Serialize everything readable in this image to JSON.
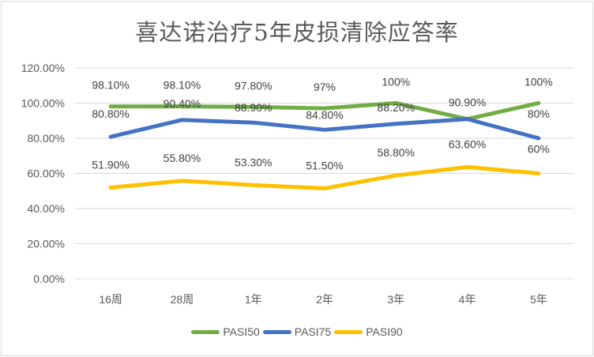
{
  "chart_data": {
    "type": "line",
    "title": "喜达诺治疗5年皮损清除应答率",
    "xlabel": "",
    "ylabel": "",
    "categories": [
      "16周",
      "28周",
      "1年",
      "2年",
      "3年",
      "4年",
      "5年"
    ],
    "y_ticks": [
      "0.00%",
      "20.00%",
      "40.00%",
      "60.00%",
      "80.00%",
      "100.00%",
      "120.00%"
    ],
    "ylim": [
      0,
      1.2
    ],
    "grid": true,
    "legend_position": "bottom",
    "series": [
      {
        "name": "PASI50",
        "color": "#70ad47",
        "values": [
          0.981,
          0.981,
          0.978,
          0.97,
          1.0,
          0.909,
          1.0
        ],
        "labels": [
          "98.10%",
          "98.10%",
          "97.80%",
          "97%",
          "100%",
          "",
          "100%"
        ]
      },
      {
        "name": "PASI75",
        "color": "#4472c4",
        "values": [
          0.808,
          0.904,
          0.889,
          0.848,
          0.882,
          0.909,
          0.8
        ],
        "labels": [
          "80.80%",
          "90.40%",
          "88.90%",
          "84.80%",
          "88.20%",
          "90.90%",
          "80%"
        ]
      },
      {
        "name": "PASI90",
        "color": "#ffc000",
        "values": [
          0.519,
          0.558,
          0.533,
          0.515,
          0.588,
          0.636,
          0.6
        ],
        "labels": [
          "51.90%",
          "55.80%",
          "53.30%",
          "51.50%",
          "58.80%",
          "63.60%",
          "60%"
        ]
      }
    ]
  }
}
